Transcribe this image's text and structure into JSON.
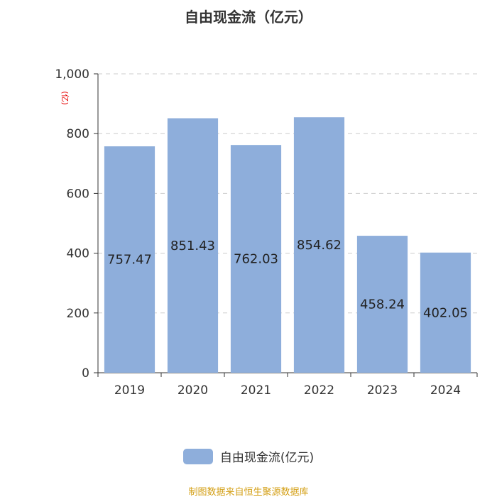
{
  "chart_data": {
    "type": "bar",
    "title": "自由现金流（亿元）",
    "categories": [
      "2019",
      "2020",
      "2021",
      "2022",
      "2023",
      "2024"
    ],
    "series": [
      {
        "name": "自由现金流(亿元)",
        "values": [
          757.47,
          851.43,
          762.03,
          854.62,
          458.24,
          402.05
        ],
        "labels": [
          "757.47",
          "851.43",
          "762.03",
          "854.62",
          "458.24",
          "402.05"
        ]
      }
    ],
    "ylabel": "(亿)",
    "ylim": [
      0,
      1000
    ],
    "yticks": [
      0,
      200,
      400,
      600,
      800,
      1000
    ],
    "ytick_labels": [
      "0",
      "200",
      "400",
      "600",
      "800",
      "1,000"
    ],
    "grid": true,
    "legend_position": "bottom-center",
    "colors": {
      "bar": "#8eaedb",
      "grid": "#cccccc",
      "axis": "#333333",
      "ylabel": "#e60000",
      "source": "#d4a017"
    }
  },
  "source_note": "制图数据来自恒生聚源数据库"
}
